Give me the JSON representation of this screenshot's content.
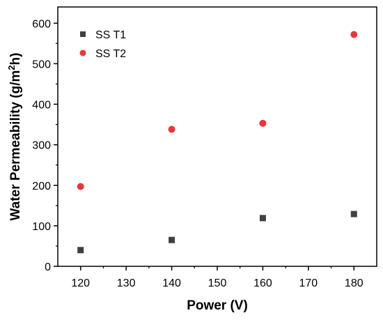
{
  "chart_data": {
    "type": "scatter",
    "title": "",
    "xlabel": "Power (V)",
    "ylabel_main": "Water Permeability (g/m",
    "ylabel_sup": "2",
    "ylabel_end": "h)",
    "xlim": [
      115,
      185
    ],
    "ylim": [
      0,
      640
    ],
    "xticks": [
      120,
      130,
      140,
      150,
      160,
      170,
      180
    ],
    "yticks": [
      0,
      100,
      200,
      300,
      400,
      500,
      600
    ],
    "grid": false,
    "legend_position": "top-left",
    "series": [
      {
        "name": "SS T1",
        "marker": "square",
        "color": "#404040",
        "x": [
          120,
          140,
          160,
          180
        ],
        "y": [
          40,
          65,
          119,
          129
        ]
      },
      {
        "name": "SS T2",
        "marker": "circle",
        "color": "#e8363d",
        "x": [
          120,
          140,
          160,
          180
        ],
        "y": [
          197,
          338,
          353,
          572
        ]
      }
    ]
  }
}
